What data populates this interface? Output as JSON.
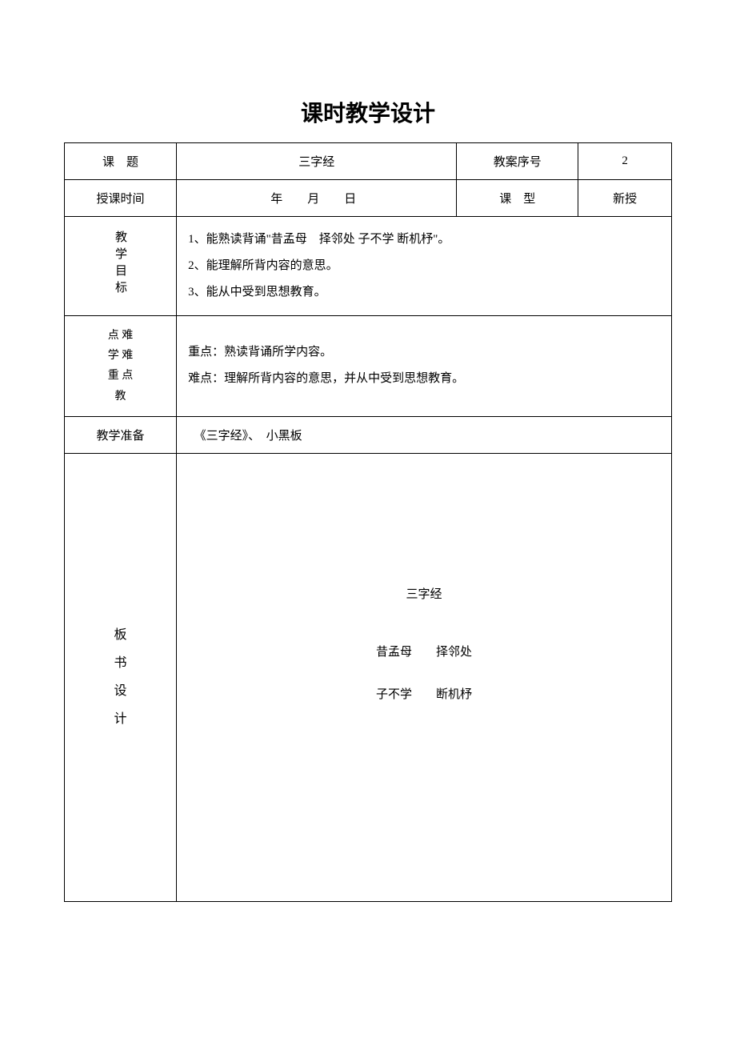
{
  "page_title": "课时教学设计",
  "row1": {
    "label1": "课　题",
    "value1": "三字经",
    "label2": "教案序号",
    "value2": "2"
  },
  "row2": {
    "label1": "授课时间",
    "value1": "年　月　日",
    "label2": "课　型",
    "value2": "新授"
  },
  "objectives": {
    "label": "教学目标",
    "line1": "1、能熟读背诵\"昔孟母　择邻处 子不学 断机杼\"。",
    "line2": "2、能理解所背内容的意思。",
    "line3": "3、能从中受到思想教育。"
  },
  "key_difficulty": {
    "label_line1": "点 难",
    "label_line2": "学 难",
    "label_line3": "重 点",
    "label_line4": "教",
    "line1": "重点：熟读背诵所学内容。",
    "line2": "难点：理解所背内容的意思，并从中受到思想教育。"
  },
  "preparation": {
    "label": "教学准备",
    "value": "《三字经》、　小黑板"
  },
  "board": {
    "label_c1": "板",
    "label_c2": "书",
    "label_c3": "设",
    "label_c4": "计",
    "title": "三字经",
    "line1": "昔孟母　　择邻处",
    "line2": "子不学　　断机杼"
  }
}
